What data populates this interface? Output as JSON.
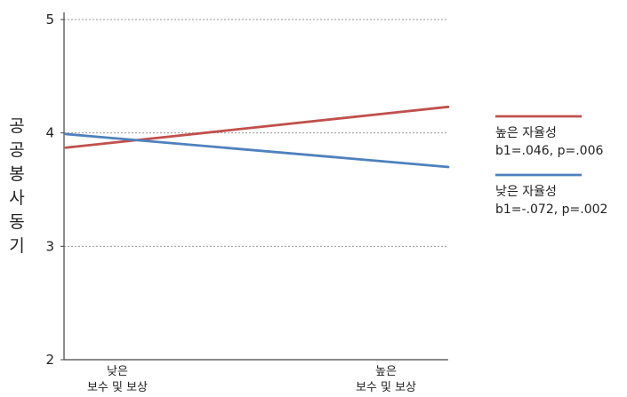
{
  "chart_data": {
    "type": "line",
    "title": "",
    "xlabel": "",
    "ylabel": "공공봉사동기",
    "categories": [
      "낮은\n보수 및 보상",
      "높은\n보수 및 보상"
    ],
    "ylim": [
      2,
      5
    ],
    "yticks": [
      2,
      3,
      4,
      5
    ],
    "grid": true,
    "legend_position": "right",
    "series": [
      {
        "name": "높은 자율성",
        "stat": "b1=.046, p=.006",
        "color": "#c0504d",
        "values": [
          3.87,
          4.23
        ]
      },
      {
        "name": "낮은 자율성",
        "stat": "b1=-.072, p=.002",
        "color": "#4f81bd",
        "values": [
          3.99,
          3.7
        ]
      }
    ]
  }
}
